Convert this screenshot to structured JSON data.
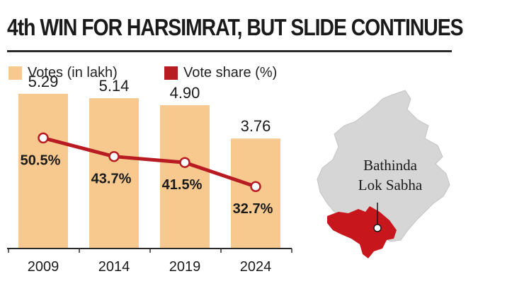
{
  "title": "4th WIN FOR HARSIMRAT, BUT SLIDE CONTINUES",
  "legend": {
    "votes_label": "Votes (in lakh)",
    "share_label": "Vote share (%)"
  },
  "colors": {
    "bar": "#f7c98e",
    "line": "#b81c22",
    "map_state": "#d6d6d6",
    "map_region": "#c8161d"
  },
  "map": {
    "label_line1": "Bathinda",
    "label_line2": "Lok Sabha"
  },
  "chart_data": {
    "type": "bar",
    "categories": [
      "2009",
      "2014",
      "2019",
      "2024"
    ],
    "series": [
      {
        "name": "Votes (in lakh)",
        "type": "bar",
        "values": [
          5.29,
          5.14,
          4.9,
          3.76
        ]
      },
      {
        "name": "Vote share (%)",
        "type": "line",
        "values": [
          50.5,
          43.7,
          41.5,
          32.7
        ]
      }
    ],
    "value_labels": [
      "5.29",
      "5.14",
      "4.90",
      "3.76"
    ],
    "share_labels": [
      "50.5%",
      "43.7%",
      "41.5%",
      "32.7%"
    ],
    "ylim": [
      0,
      5.6
    ],
    "share_ylim": [
      10,
      70
    ],
    "grid": false,
    "legend_position": "top"
  }
}
